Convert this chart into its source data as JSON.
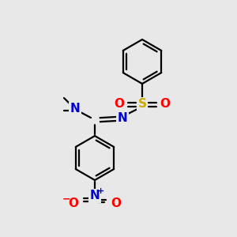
{
  "background_color": "#e8e8e8",
  "bond_color": "#000000",
  "N_color": "#0000cc",
  "O_color": "#ff0000",
  "S_color": "#ccaa00",
  "figsize": [
    3.0,
    3.0
  ],
  "dpi": 100,
  "xlim": [
    0,
    300
  ],
  "ylim": [
    0,
    300
  ]
}
